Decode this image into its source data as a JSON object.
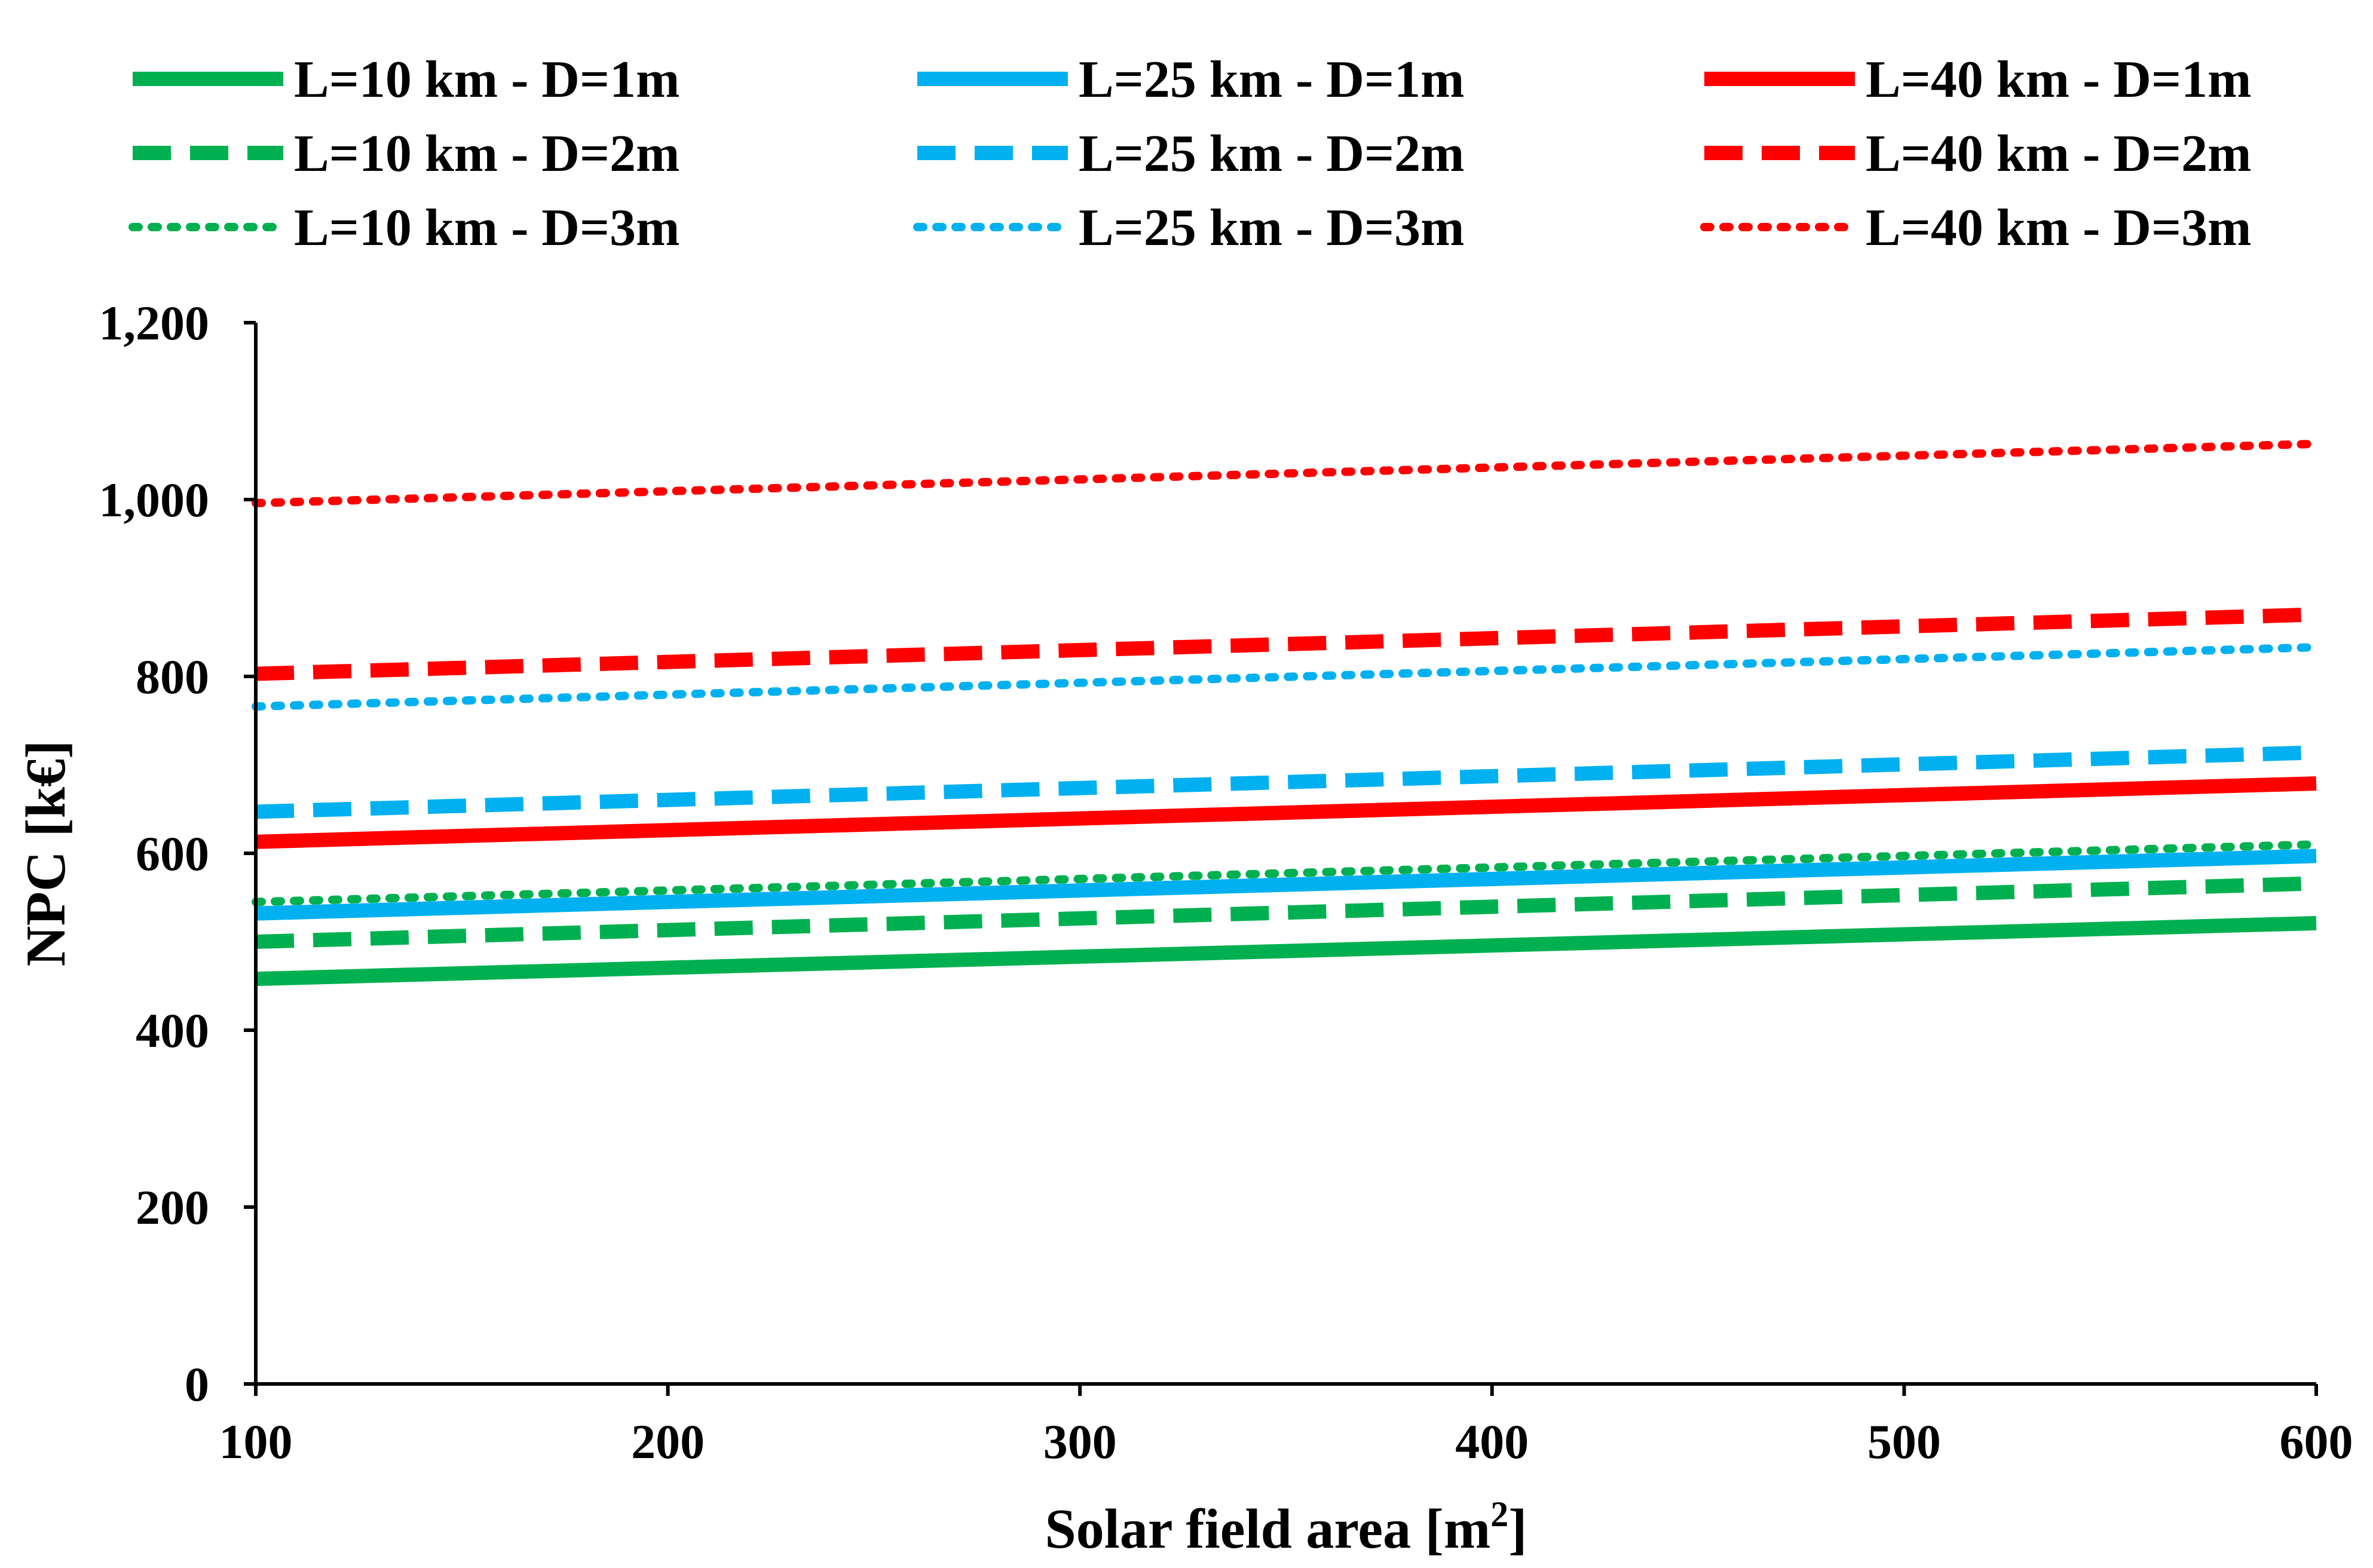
{
  "chart_data": {
    "type": "line",
    "xlabel": "Solar field area [m",
    "xlabel_sup": "2",
    "xlabel_suffix": "]",
    "ylabel": "NPC [k€]",
    "xlim": [
      100,
      600
    ],
    "ylim": [
      0,
      1200
    ],
    "x_ticks": [
      100,
      200,
      300,
      400,
      500,
      600
    ],
    "x_tick_labels": [
      "100",
      "200",
      "300",
      "400",
      "500",
      "600"
    ],
    "y_ticks": [
      0,
      200,
      400,
      600,
      800,
      1000,
      1200
    ],
    "y_tick_labels": [
      "0",
      "200",
      "400",
      "600",
      "800",
      "1,000",
      "1,200"
    ],
    "grid": false,
    "legend_position": "top",
    "colors": {
      "green": "#00b050",
      "blue": "#00b0f0",
      "red": "#ff0000"
    },
    "series": [
      {
        "name": "L=10 km - D=1m",
        "color": "#00b050",
        "style": "solid",
        "x": [
          100,
          600
        ],
        "y": [
          458,
          521
        ]
      },
      {
        "name": "L=25 km - D=1m",
        "color": "#00b0f0",
        "style": "solid",
        "x": [
          100,
          600
        ],
        "y": [
          532,
          597
        ]
      },
      {
        "name": "L=40 km - D=1m",
        "color": "#ff0000",
        "style": "solid",
        "x": [
          100,
          600
        ],
        "y": [
          613,
          679
        ]
      },
      {
        "name": "L=10 km - D=2m",
        "color": "#00b050",
        "style": "dashed",
        "x": [
          100,
          600
        ],
        "y": [
          500,
          566
        ]
      },
      {
        "name": "L=25 km - D=2m",
        "color": "#00b0f0",
        "style": "dashed",
        "x": [
          100,
          600
        ],
        "y": [
          647,
          714
        ]
      },
      {
        "name": "L=40 km - D=2m",
        "color": "#ff0000",
        "style": "dashed",
        "x": [
          100,
          600
        ],
        "y": [
          803,
          870
        ]
      },
      {
        "name": "L=10 km - D=3m",
        "color": "#00b050",
        "style": "dotted",
        "x": [
          100,
          600
        ],
        "y": [
          545,
          610
        ]
      },
      {
        "name": "L=25 km - D=3m",
        "color": "#00b0f0",
        "style": "dotted",
        "x": [
          100,
          600
        ],
        "y": [
          766,
          833
        ]
      },
      {
        "name": "L=40 km - D=3m",
        "color": "#ff0000",
        "style": "dotted",
        "x": [
          100,
          600
        ],
        "y": [
          996,
          1063
        ]
      }
    ]
  }
}
